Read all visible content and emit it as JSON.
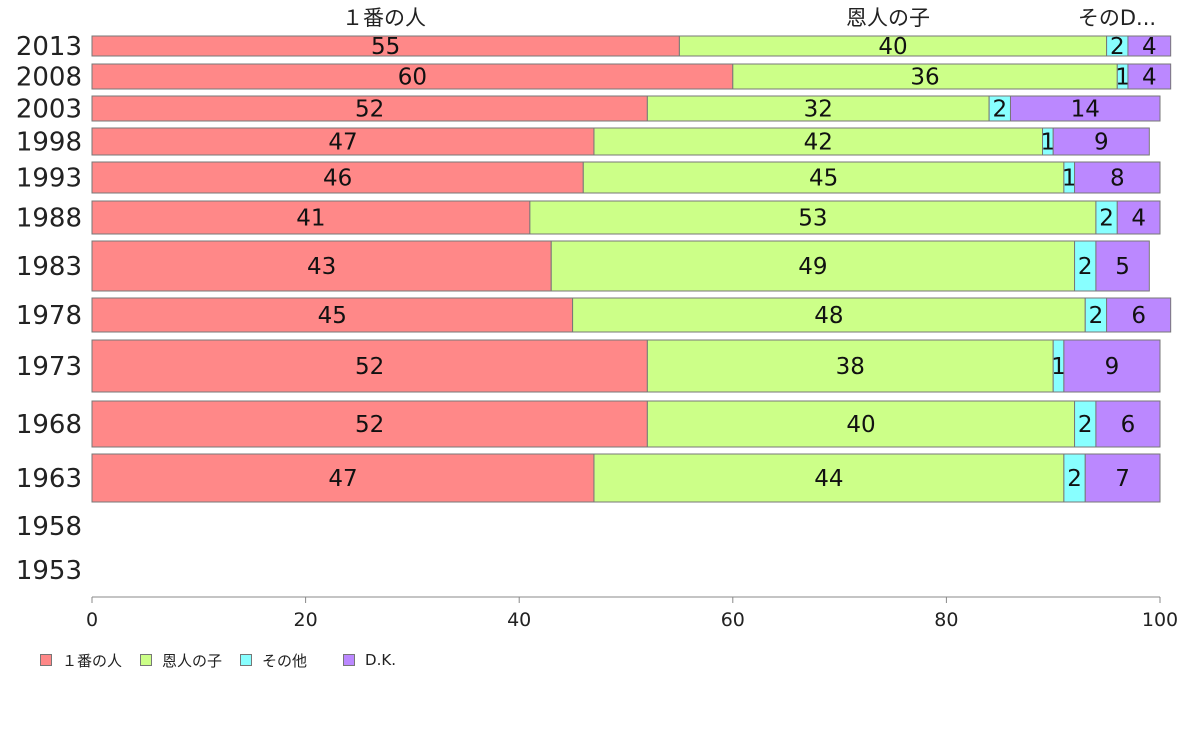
{
  "chart_data": {
    "type": "bar",
    "orientation": "horizontal",
    "stacked": true,
    "categories": [
      "2013",
      "2008",
      "2003",
      "1998",
      "1993",
      "1988",
      "1983",
      "1978",
      "1973",
      "1968",
      "1963",
      "1958",
      "1953"
    ],
    "series": [
      {
        "name": "１番の人",
        "color": "#ff8888",
        "values": [
          55,
          60,
          52,
          47,
          46,
          41,
          43,
          45,
          52,
          52,
          47,
          null,
          null
        ]
      },
      {
        "name": "恩人の子",
        "color": "#ccff88",
        "values": [
          40,
          36,
          32,
          42,
          45,
          53,
          49,
          48,
          38,
          40,
          44,
          null,
          null
        ]
      },
      {
        "name": "その他",
        "color": "#88ffff",
        "values": [
          2,
          1,
          2,
          1,
          1,
          2,
          2,
          2,
          1,
          2,
          2,
          null,
          null
        ]
      },
      {
        "name": "D.K.",
        "color": "#bb88ff",
        "values": [
          4,
          4,
          14,
          9,
          8,
          4,
          5,
          6,
          9,
          6,
          7,
          null,
          null
        ]
      }
    ],
    "top_labels": [
      "１番の人",
      "恩人の子",
      "そのD..."
    ],
    "xlim": [
      0,
      100
    ],
    "x_ticks": [
      "0",
      "20",
      "40",
      "60",
      "80",
      "100"
    ],
    "grid": false,
    "legend_position": "bottom-left"
  }
}
